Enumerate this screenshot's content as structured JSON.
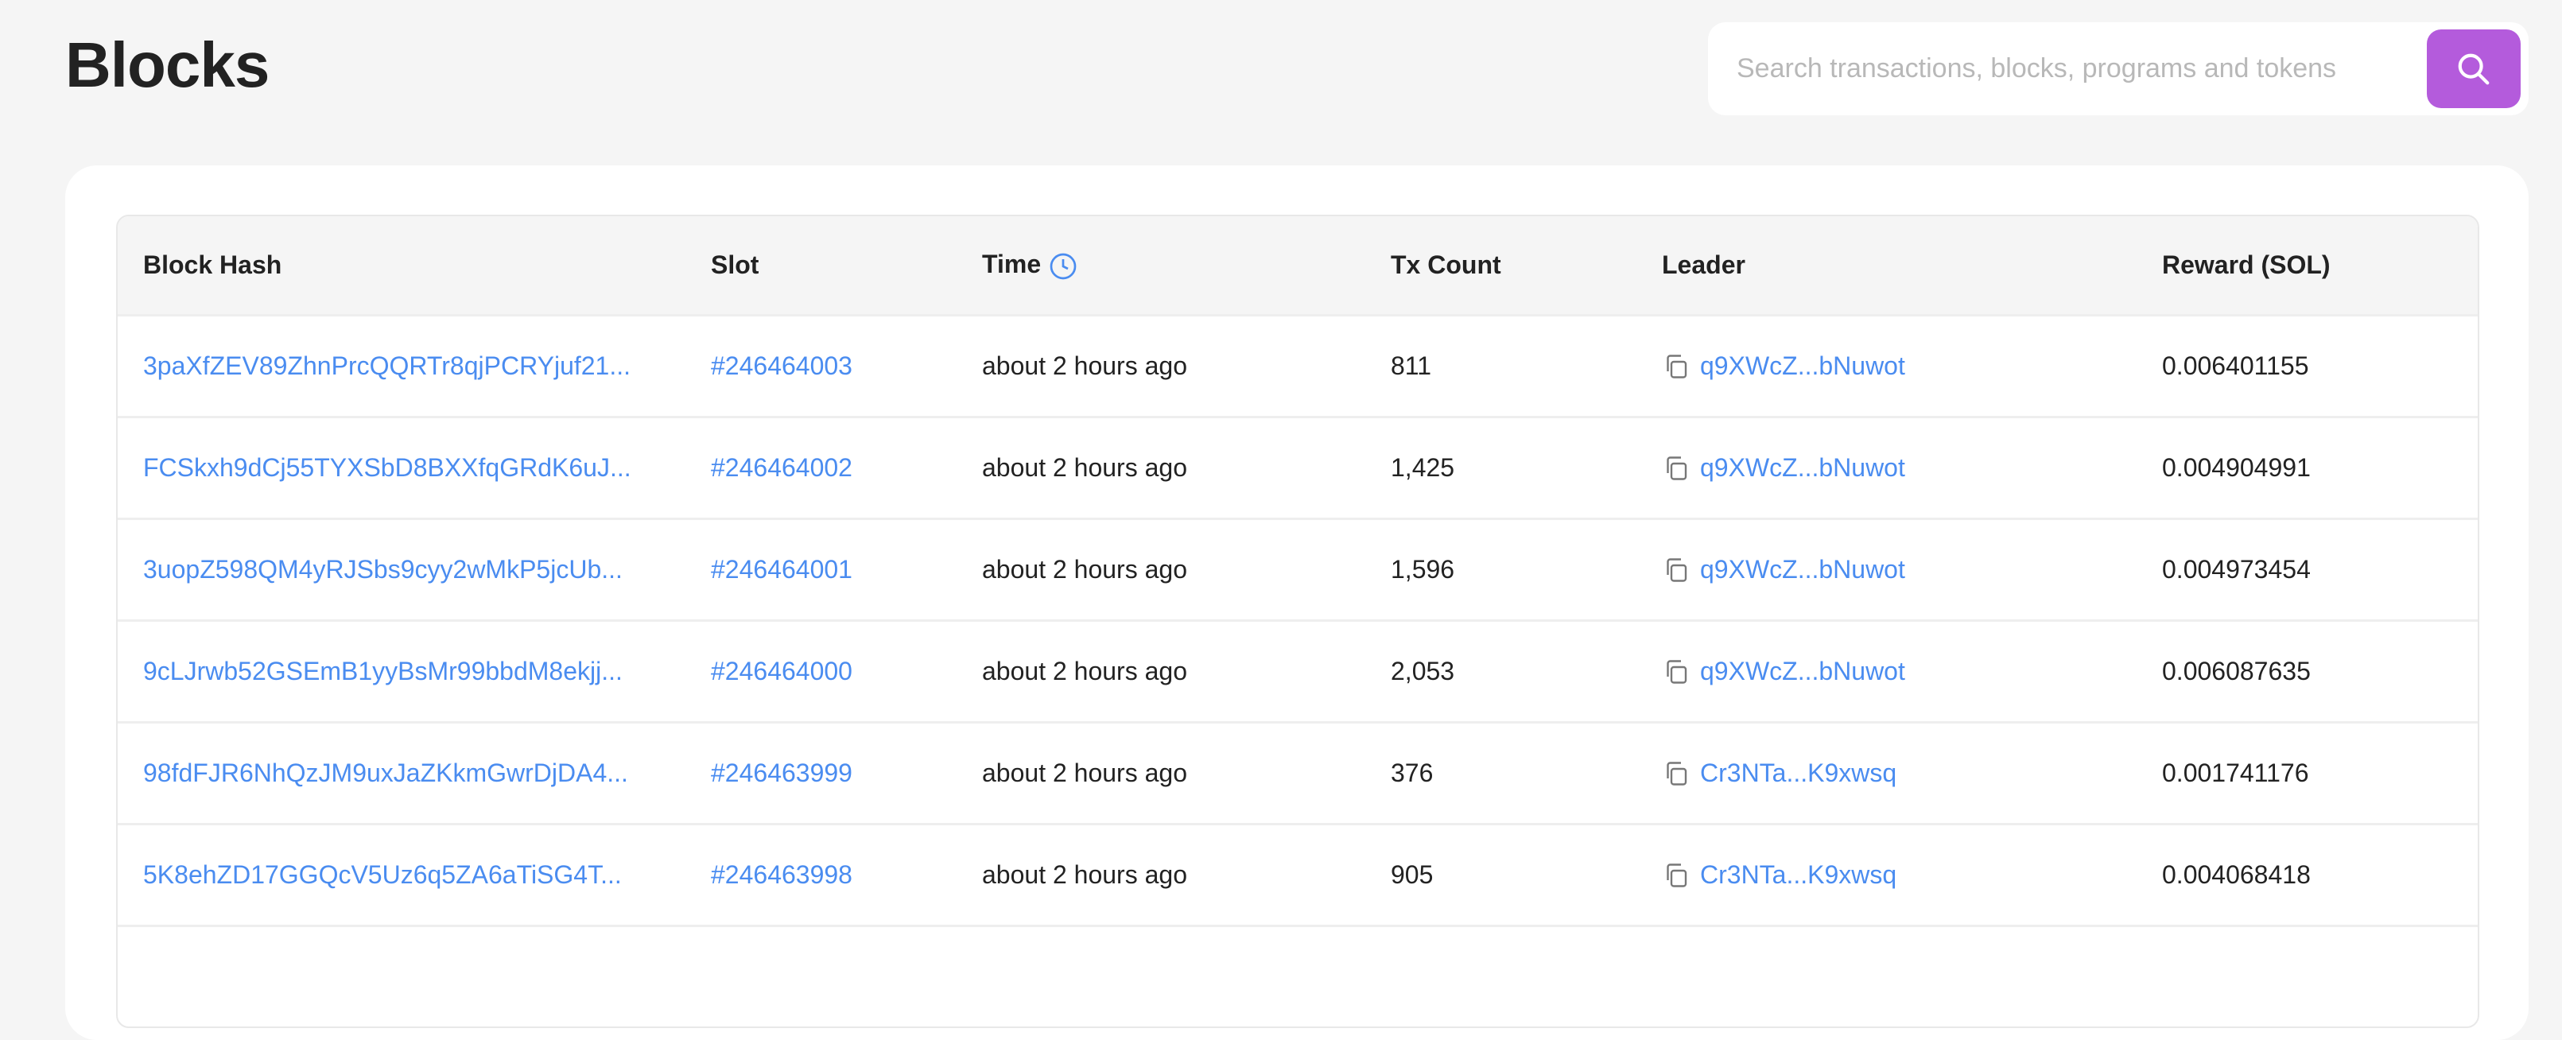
{
  "page_title": "Blocks",
  "search": {
    "placeholder": "Search transactions, blocks, programs and tokens",
    "button_icon": "search-icon",
    "accent": "#b45bdc"
  },
  "table": {
    "headers": [
      "Block Hash",
      "Slot",
      "Time",
      "Tx Count",
      "Leader",
      "Reward (SOL)"
    ],
    "rows": [
      {
        "hash": "3paXfZEV89ZhnPrcQQRTr8qjPCRYjuf21...",
        "slot": "#246464003",
        "time": "about 2 hours ago",
        "tx": "811",
        "leader": "q9XWcZ...bNuwot",
        "reward": "0.006401155"
      },
      {
        "hash": "FCSkxh9dCj55TYXSbD8BXXfqGRdK6uJ...",
        "slot": "#246464002",
        "time": "about 2 hours ago",
        "tx": "1,425",
        "leader": "q9XWcZ...bNuwot",
        "reward": "0.004904991"
      },
      {
        "hash": "3uopZ598QM4yRJSbs9cyy2wMkP5jcUb...",
        "slot": "#246464001",
        "time": "about 2 hours ago",
        "tx": "1,596",
        "leader": "q9XWcZ...bNuwot",
        "reward": "0.004973454"
      },
      {
        "hash": "9cLJrwb52GSEmB1yyBsMr99bbdM8ekjj...",
        "slot": "#246464000",
        "time": "about 2 hours ago",
        "tx": "2,053",
        "leader": "q9XWcZ...bNuwot",
        "reward": "0.006087635"
      },
      {
        "hash": "98fdFJR6NhQzJM9uxJaZKkmGwrDjDA4...",
        "slot": "#246463999",
        "time": "about 2 hours ago",
        "tx": "376",
        "leader": "Cr3NTa...K9xwsq",
        "reward": "0.001741176"
      },
      {
        "hash": "5K8ehZD17GGQcV5Uz6q5ZA6aTiSG4T...",
        "slot": "#246463998",
        "time": "about 2 hours ago",
        "tx": "905",
        "leader": "Cr3NTa...K9xwsq",
        "reward": "0.004068418"
      }
    ]
  }
}
